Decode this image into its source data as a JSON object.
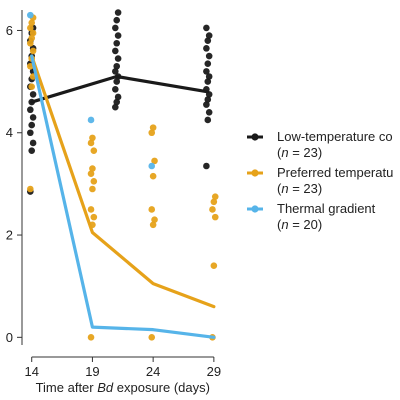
{
  "chart_data": {
    "type": "line",
    "xlabel_parts": [
      "Time after ",
      "Bd",
      " exposure (days)"
    ],
    "ylabel": "",
    "x_ticks": [
      "14",
      "19",
      "24",
      "29"
    ],
    "y_ticks": [
      "0",
      "2",
      "4",
      "6"
    ],
    "xlim": [
      13.2,
      30
    ],
    "ylim": [
      -0.15,
      6.4
    ],
    "grid": false,
    "legend_position": "right",
    "series": [
      {
        "name": "Low-temperature co",
        "n_label": "(n = 23)",
        "color": "#1a1a1a",
        "line": {
          "x": [
            14,
            21,
            28.5
          ],
          "y": [
            4.6,
            5.1,
            4.8
          ]
        },
        "points": [
          {
            "x": 14,
            "y": [
              2.85,
              3.65,
              3.8,
              4.0,
              4.15,
              4.3,
              4.45,
              4.6,
              4.75,
              4.9,
              5.05,
              5.2,
              5.35,
              5.5,
              5.65,
              5.8,
              5.95,
              6.05
            ]
          },
          {
            "x": 21,
            "y": [
              4.5,
              4.6,
              4.7,
              4.85,
              5.0,
              5.1,
              5.2,
              5.3,
              5.45,
              5.6,
              5.75,
              5.9,
              6.05,
              6.2,
              6.35
            ]
          },
          {
            "x": 28.5,
            "y": [
              3.35,
              4.25,
              4.4,
              4.55,
              4.65,
              4.75,
              4.85,
              5.0,
              5.1,
              5.2,
              5.35,
              5.5,
              5.65,
              5.8,
              5.9,
              6.05
            ]
          }
        ]
      },
      {
        "name": "Preferred temperatu",
        "n_label": "(n = 23)",
        "color": "#e6a21a",
        "line": {
          "x": [
            14,
            19,
            24,
            29
          ],
          "y": [
            5.5,
            2.05,
            1.05,
            0.6
          ]
        },
        "points": [
          {
            "x": 14,
            "y": [
              2.9,
              4.9,
              5.1,
              5.3,
              5.45,
              5.6,
              5.75,
              5.85,
              5.95,
              6.05,
              6.15,
              6.25
            ]
          },
          {
            "x": 19,
            "y": [
              0,
              2.2,
              2.35,
              2.5,
              2.9,
              3.05,
              3.2,
              3.3,
              3.65,
              3.8,
              3.9
            ]
          },
          {
            "x": 24,
            "y": [
              0,
              2.2,
              2.3,
              2.5,
              3.15,
              3.45,
              4.0,
              4.1
            ]
          },
          {
            "x": 29,
            "y": [
              0,
              1.4,
              2.35,
              2.5,
              2.65,
              2.75
            ]
          }
        ]
      },
      {
        "name": "Thermal gradient",
        "n_label": "(n = 20)",
        "color": "#56b4e9",
        "line": {
          "x": [
            14,
            19,
            24,
            29
          ],
          "y": [
            5.5,
            0.2,
            0.15,
            0
          ]
        },
        "points": [
          {
            "x": 14,
            "y": [
              6.3
            ]
          },
          {
            "x": 19,
            "y": [
              4.25
            ]
          },
          {
            "x": 24,
            "y": [
              3.35
            ]
          }
        ]
      }
    ]
  }
}
